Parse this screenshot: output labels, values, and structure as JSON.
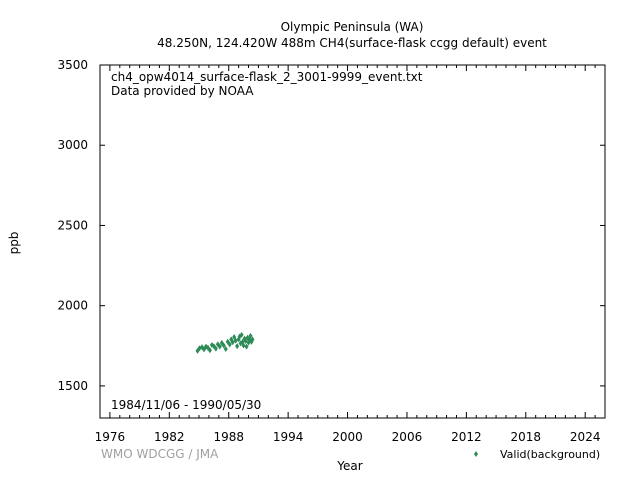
{
  "chart_data": {
    "type": "scatter",
    "title": "Olympic Peninsula (WA)",
    "subtitle": "48.250N, 124.420W 488m    CH4(surface-flask ccgg default) event",
    "xlabel": "Year",
    "ylabel": "ppb",
    "xlim": [
      1975,
      2026
    ],
    "ylim": [
      1300,
      3500
    ],
    "x_ticks": [
      1976,
      1982,
      1988,
      1994,
      2000,
      2006,
      2012,
      2018,
      2024
    ],
    "y_ticks": [
      1500,
      2000,
      2500,
      3000,
      3500
    ],
    "grid": false,
    "legend_position": "bottom-right",
    "annotations": {
      "filename": "ch4_opw4014_surface-flask_2_3001-9999_event.txt",
      "provider": "Data provided by NOAA",
      "date_range": "1984/11/06 - 1990/05/30"
    },
    "credit": "WMO WDCGG / JMA",
    "series": [
      {
        "name": "Valid(background)",
        "color": "#2e8b57",
        "marker": "diamond",
        "x": [
          1984.85,
          1985.05,
          1985.3,
          1985.5,
          1985.7,
          1985.9,
          1986.1,
          1986.3,
          1986.5,
          1986.7,
          1986.9,
          1987.1,
          1987.3,
          1987.5,
          1987.7,
          1987.9,
          1988.1,
          1988.25,
          1988.4,
          1988.55,
          1988.7,
          1988.85,
          1989.0,
          1989.1,
          1989.2,
          1989.3,
          1989.4,
          1989.5,
          1989.6,
          1989.7,
          1989.8,
          1989.9,
          1990.0,
          1990.1,
          1990.2,
          1990.3,
          1990.4
        ],
        "y": [
          1718,
          1735,
          1742,
          1728,
          1745,
          1738,
          1722,
          1755,
          1748,
          1732,
          1760,
          1745,
          1768,
          1752,
          1730,
          1775,
          1758,
          1790,
          1772,
          1805,
          1782,
          1748,
          1790,
          1808,
          1765,
          1818,
          1775,
          1752,
          1795,
          1780,
          1745,
          1800,
          1770,
          1788,
          1812,
          1775,
          1790
        ]
      }
    ]
  }
}
